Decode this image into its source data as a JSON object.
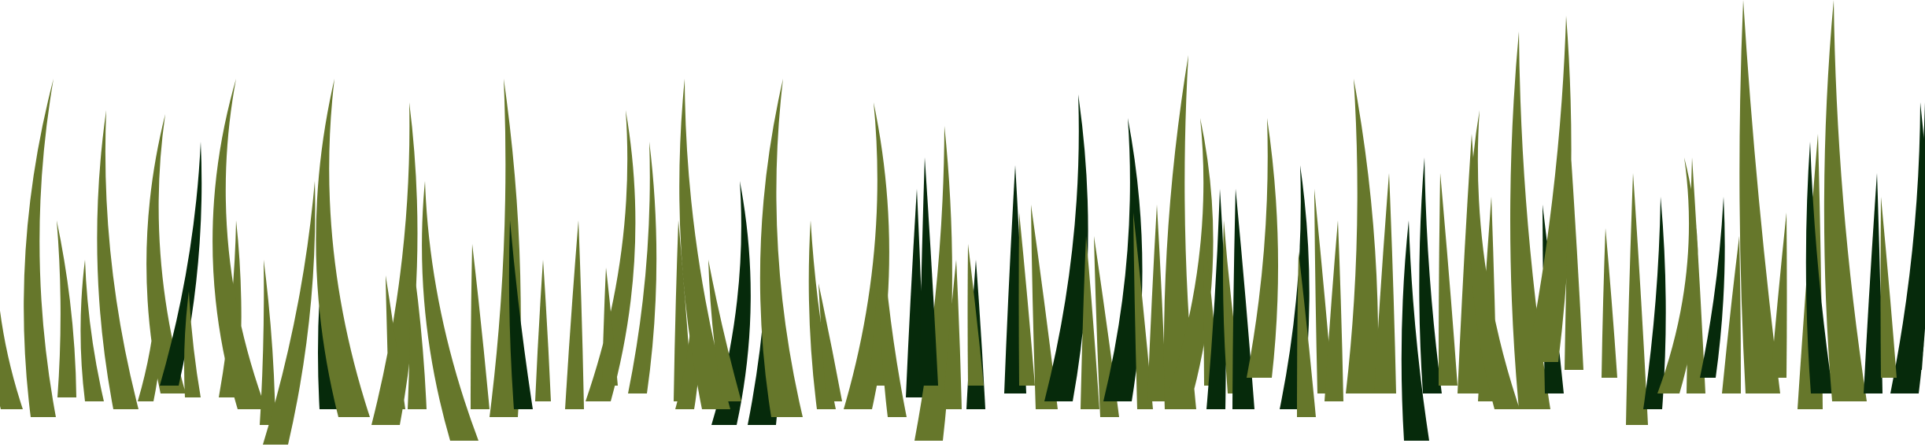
{
  "scene": {
    "subject": "grass blades",
    "background_color": "#ffffff",
    "colors": {
      "olive": "#66772b",
      "dark": "#062a0b",
      "mid": "#3d5a20"
    }
  }
}
